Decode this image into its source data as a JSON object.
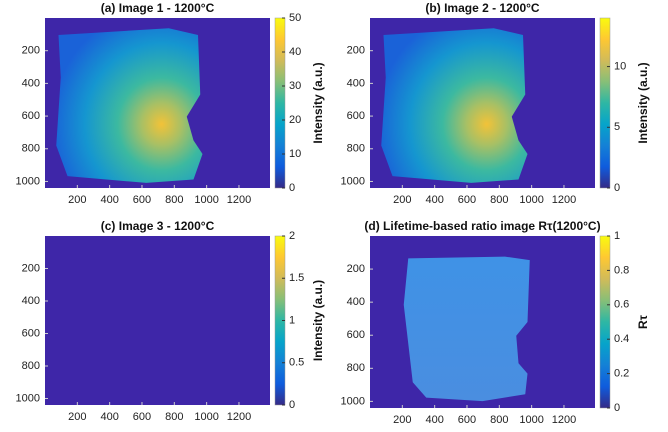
{
  "chart_data": [
    {
      "type": "heatmap",
      "title": "(a) Image 1 - 1200°C",
      "colorbar_label": "Intensity (a.u.)",
      "xlim": [
        0,
        1392
      ],
      "ylim": [
        0,
        1040
      ],
      "xticks": [
        200,
        400,
        600,
        800,
        1000,
        1200
      ],
      "yticks": [
        200,
        400,
        600,
        800,
        1000
      ],
      "clim": [
        0,
        50
      ],
      "cticks": [
        0,
        10,
        20,
        30,
        40,
        50
      ]
    },
    {
      "type": "heatmap",
      "title": "(b) Image 2 - 1200°C",
      "colorbar_label": "Intensity (a.u.)",
      "xlim": [
        0,
        1392
      ],
      "ylim": [
        0,
        1040
      ],
      "xticks": [
        200,
        400,
        600,
        800,
        1000,
        1200
      ],
      "yticks": [
        200,
        400,
        600,
        800,
        1000
      ],
      "clim": [
        0,
        14
      ],
      "cticks": [
        0,
        5,
        10
      ]
    },
    {
      "type": "heatmap",
      "title": "(c) Image 3 - 1200°C",
      "colorbar_label": "Intensity (a.u.)",
      "xlim": [
        0,
        1392
      ],
      "ylim": [
        0,
        1040
      ],
      "xticks": [
        200,
        400,
        600,
        800,
        1000,
        1200
      ],
      "yticks": [
        200,
        400,
        600,
        800,
        1000
      ],
      "clim": [
        0,
        2
      ],
      "cticks": [
        0,
        0.5,
        1,
        1.5,
        2
      ]
    },
    {
      "type": "heatmap",
      "title": "(d) Lifetime-based ratio image Rτ(1200°C)",
      "colorbar_label": "Rτ",
      "xlim": [
        0,
        1392
      ],
      "ylim": [
        0,
        1040
      ],
      "xticks": [
        200,
        400,
        600,
        800,
        1000,
        1200
      ],
      "yticks": [
        200,
        400,
        600,
        800,
        1000
      ],
      "clim": [
        0,
        1
      ],
      "cticks": [
        0,
        0.2,
        0.4,
        0.6,
        0.8,
        1
      ]
    }
  ]
}
